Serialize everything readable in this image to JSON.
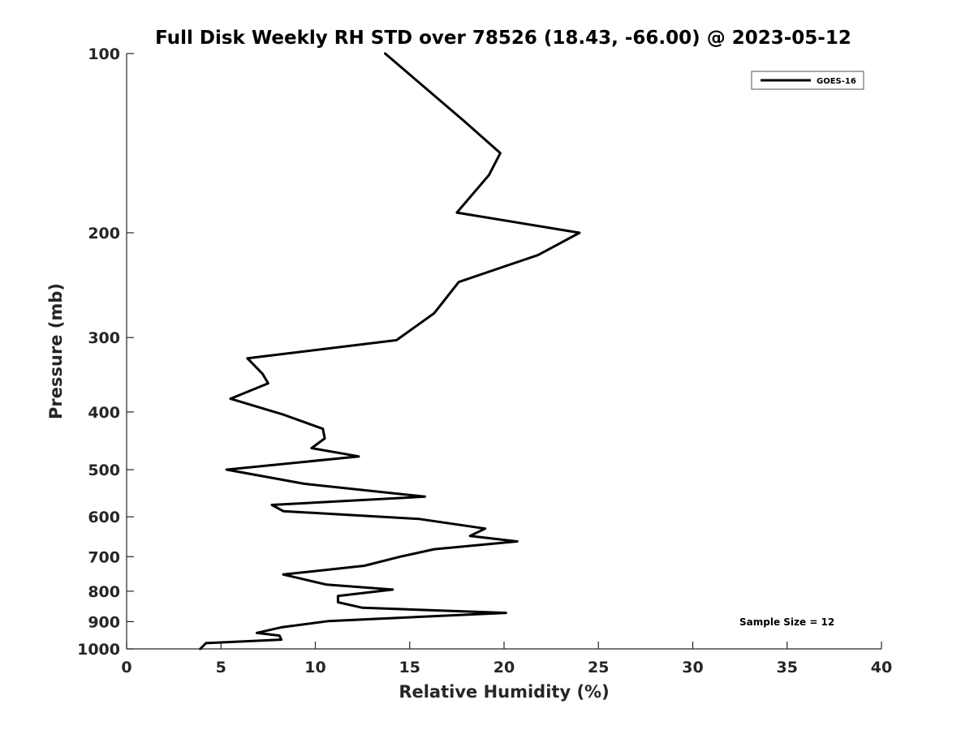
{
  "chart_data": {
    "type": "line",
    "title": "Full Disk Weekly RH STD over 78526 (18.43, -66.00) @ 2023-05-12",
    "xlabel": "Relative Humidity (%)",
    "ylabel": "Pressure (mb)",
    "xlim": [
      0,
      40
    ],
    "ylim": [
      1000,
      100
    ],
    "yscale": "log",
    "y_reversed": true,
    "grid": false,
    "x_ticks": [
      0,
      5,
      10,
      15,
      20,
      25,
      30,
      35,
      40
    ],
    "x_tick_labels": [
      "0",
      "5",
      "10",
      "15",
      "20",
      "25",
      "30",
      "35",
      "40"
    ],
    "y_ticks": [
      100,
      200,
      300,
      400,
      500,
      600,
      700,
      800,
      900,
      1000
    ],
    "y_tick_labels": [
      "100",
      "200",
      "300",
      "400",
      "500",
      "600",
      "700",
      "800",
      "900",
      "1000"
    ],
    "legend_position": "top-right",
    "annotation": "Sample Size = 12",
    "series": [
      {
        "name": "GOES-16",
        "color": "#000000",
        "x": [
          13.7,
          17.9,
          19.8,
          19.2,
          17.5,
          24.0,
          21.8,
          17.6,
          16.3,
          14.3,
          6.4,
          7.2,
          7.5,
          5.5,
          8.3,
          10.4,
          10.5,
          9.8,
          12.3,
          5.3,
          9.4,
          15.8,
          7.7,
          8.3,
          15.5,
          19.0,
          18.2,
          20.7,
          16.3,
          14.5,
          12.6,
          8.3,
          10.6,
          14.1,
          11.2,
          11.2,
          12.5,
          20.1,
          10.7,
          8.2,
          6.9,
          8.1,
          8.2,
          4.2,
          3.9
        ],
        "y": [
          100,
          130,
          147,
          160,
          185,
          200,
          218,
          242,
          273,
          303,
          325,
          345,
          358,
          380,
          404,
          427,
          443,
          460,
          475,
          500,
          528,
          555,
          573,
          587,
          605,
          628,
          646,
          660,
          680,
          700,
          725,
          750,
          780,
          795,
          815,
          835,
          853,
          870,
          898,
          920,
          940,
          950,
          965,
          978,
          1000
        ]
      }
    ]
  }
}
